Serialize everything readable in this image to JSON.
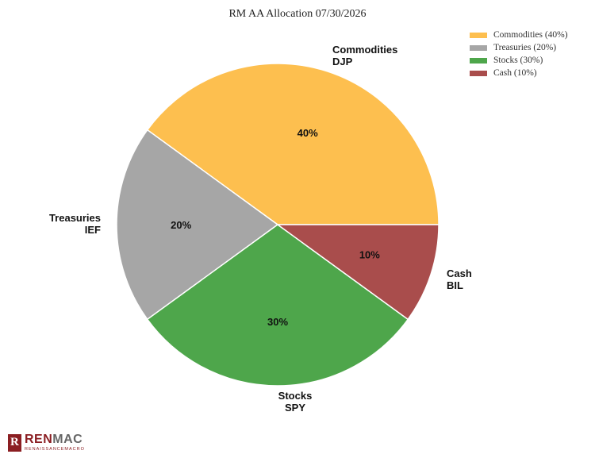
{
  "chart_data": {
    "type": "pie",
    "title": "RM AA Allocation 07/30/2026",
    "slices": [
      {
        "name": "Commodities",
        "ticker": "DJP",
        "value": 40,
        "label": "40%",
        "legend": "Commodities (40%)",
        "color": "#fdbf4f"
      },
      {
        "name": "Treasuries",
        "ticker": "IEF",
        "value": 20,
        "label": "20%",
        "legend": "Treasuries (20%)",
        "color": "#a6a6a6"
      },
      {
        "name": "Stocks",
        "ticker": "SPY",
        "value": 30,
        "label": "30%",
        "legend": "Stocks (30%)",
        "color": "#4ea64b"
      },
      {
        "name": "Cash",
        "ticker": "BIL",
        "value": 10,
        "label": "10%",
        "legend": "Cash (10%)",
        "color": "#a94d4c"
      }
    ],
    "legend_position": "top-right"
  },
  "legend_items": [
    {
      "label": "Commodities (40%)",
      "color": "#fdbf4f"
    },
    {
      "label": "Treasuries (20%)",
      "color": "#a6a6a6"
    },
    {
      "label": "Stocks (30%)",
      "color": "#4ea64b"
    },
    {
      "label": "Cash (10%)",
      "color": "#a94d4c"
    }
  ],
  "logo": {
    "main": "RENMAC",
    "main_first": "REN",
    "main_second": "MAC",
    "sub": "RENAISSANCEMACRO",
    "mark": "R"
  }
}
